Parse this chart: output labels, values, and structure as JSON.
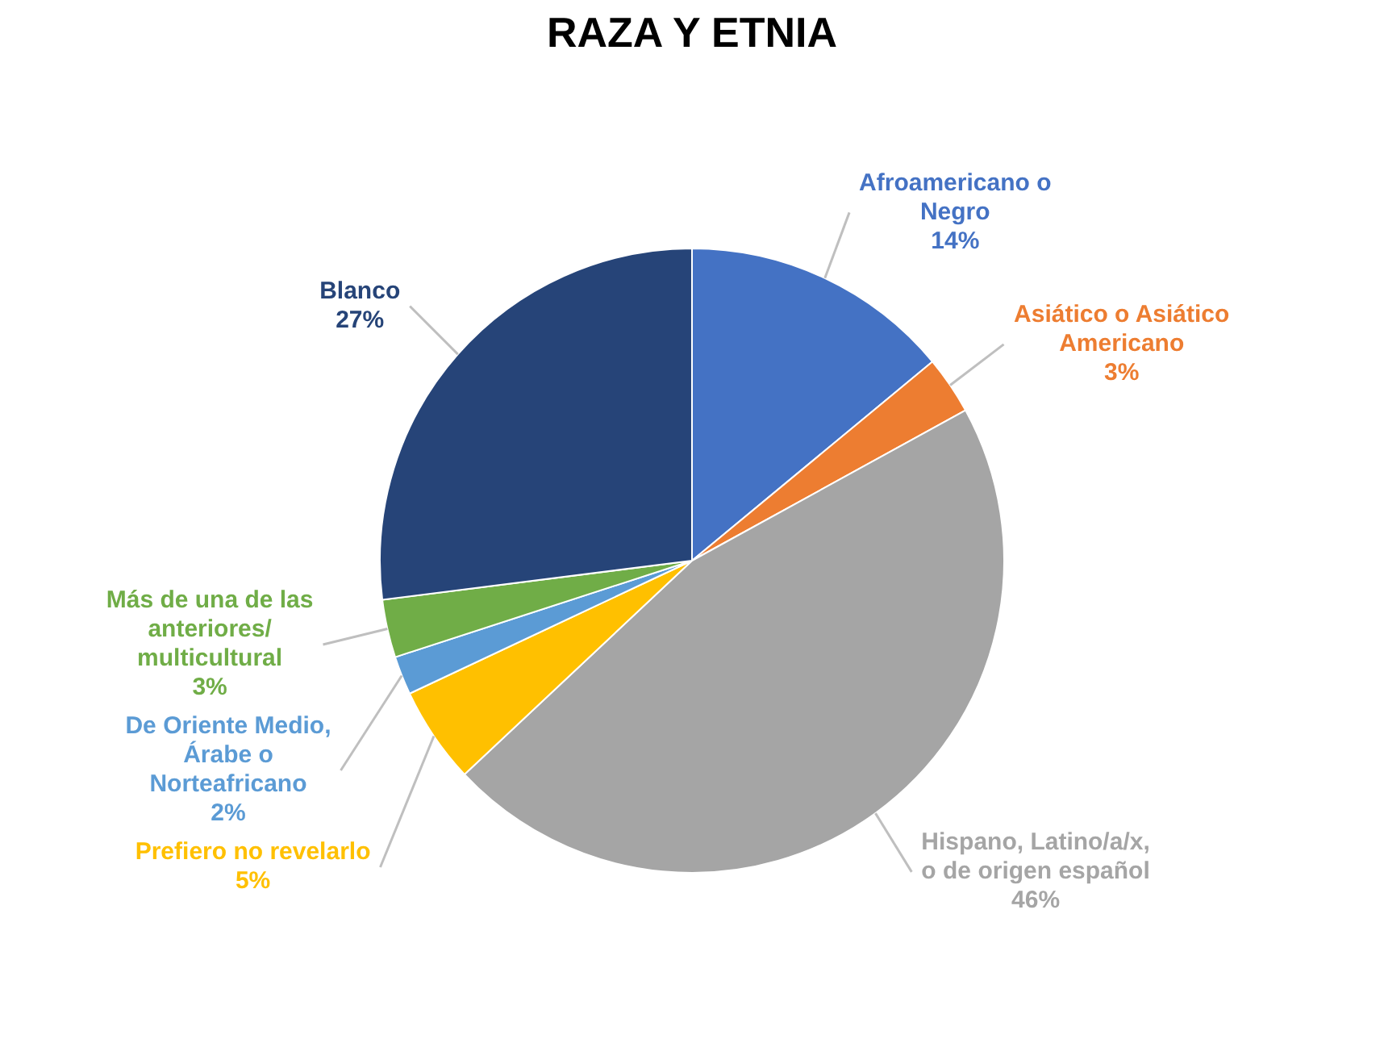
{
  "chart_data": {
    "type": "pie",
    "title": "RAZA Y ETNIA",
    "categories": [
      "Afroamericano o Negro",
      "Asiático o Asiático Americano",
      "Hispano, Latino/a/x, o de origen español",
      "Prefiero no revelarlo",
      "De Oriente Medio, Árabe o Norteafricano",
      "Más de una de las anteriores/ multicultural",
      "Blanco"
    ],
    "values": [
      14,
      3,
      46,
      5,
      2,
      3,
      27
    ],
    "colors": [
      "#4472c4",
      "#ed7d31",
      "#a5a5a5",
      "#ffc000",
      "#5b9bd5",
      "#70ad47",
      "#264478"
    ],
    "value_labels": [
      "14%",
      "3%",
      "46%",
      "5%",
      "2%",
      "3%",
      "27%"
    ]
  }
}
